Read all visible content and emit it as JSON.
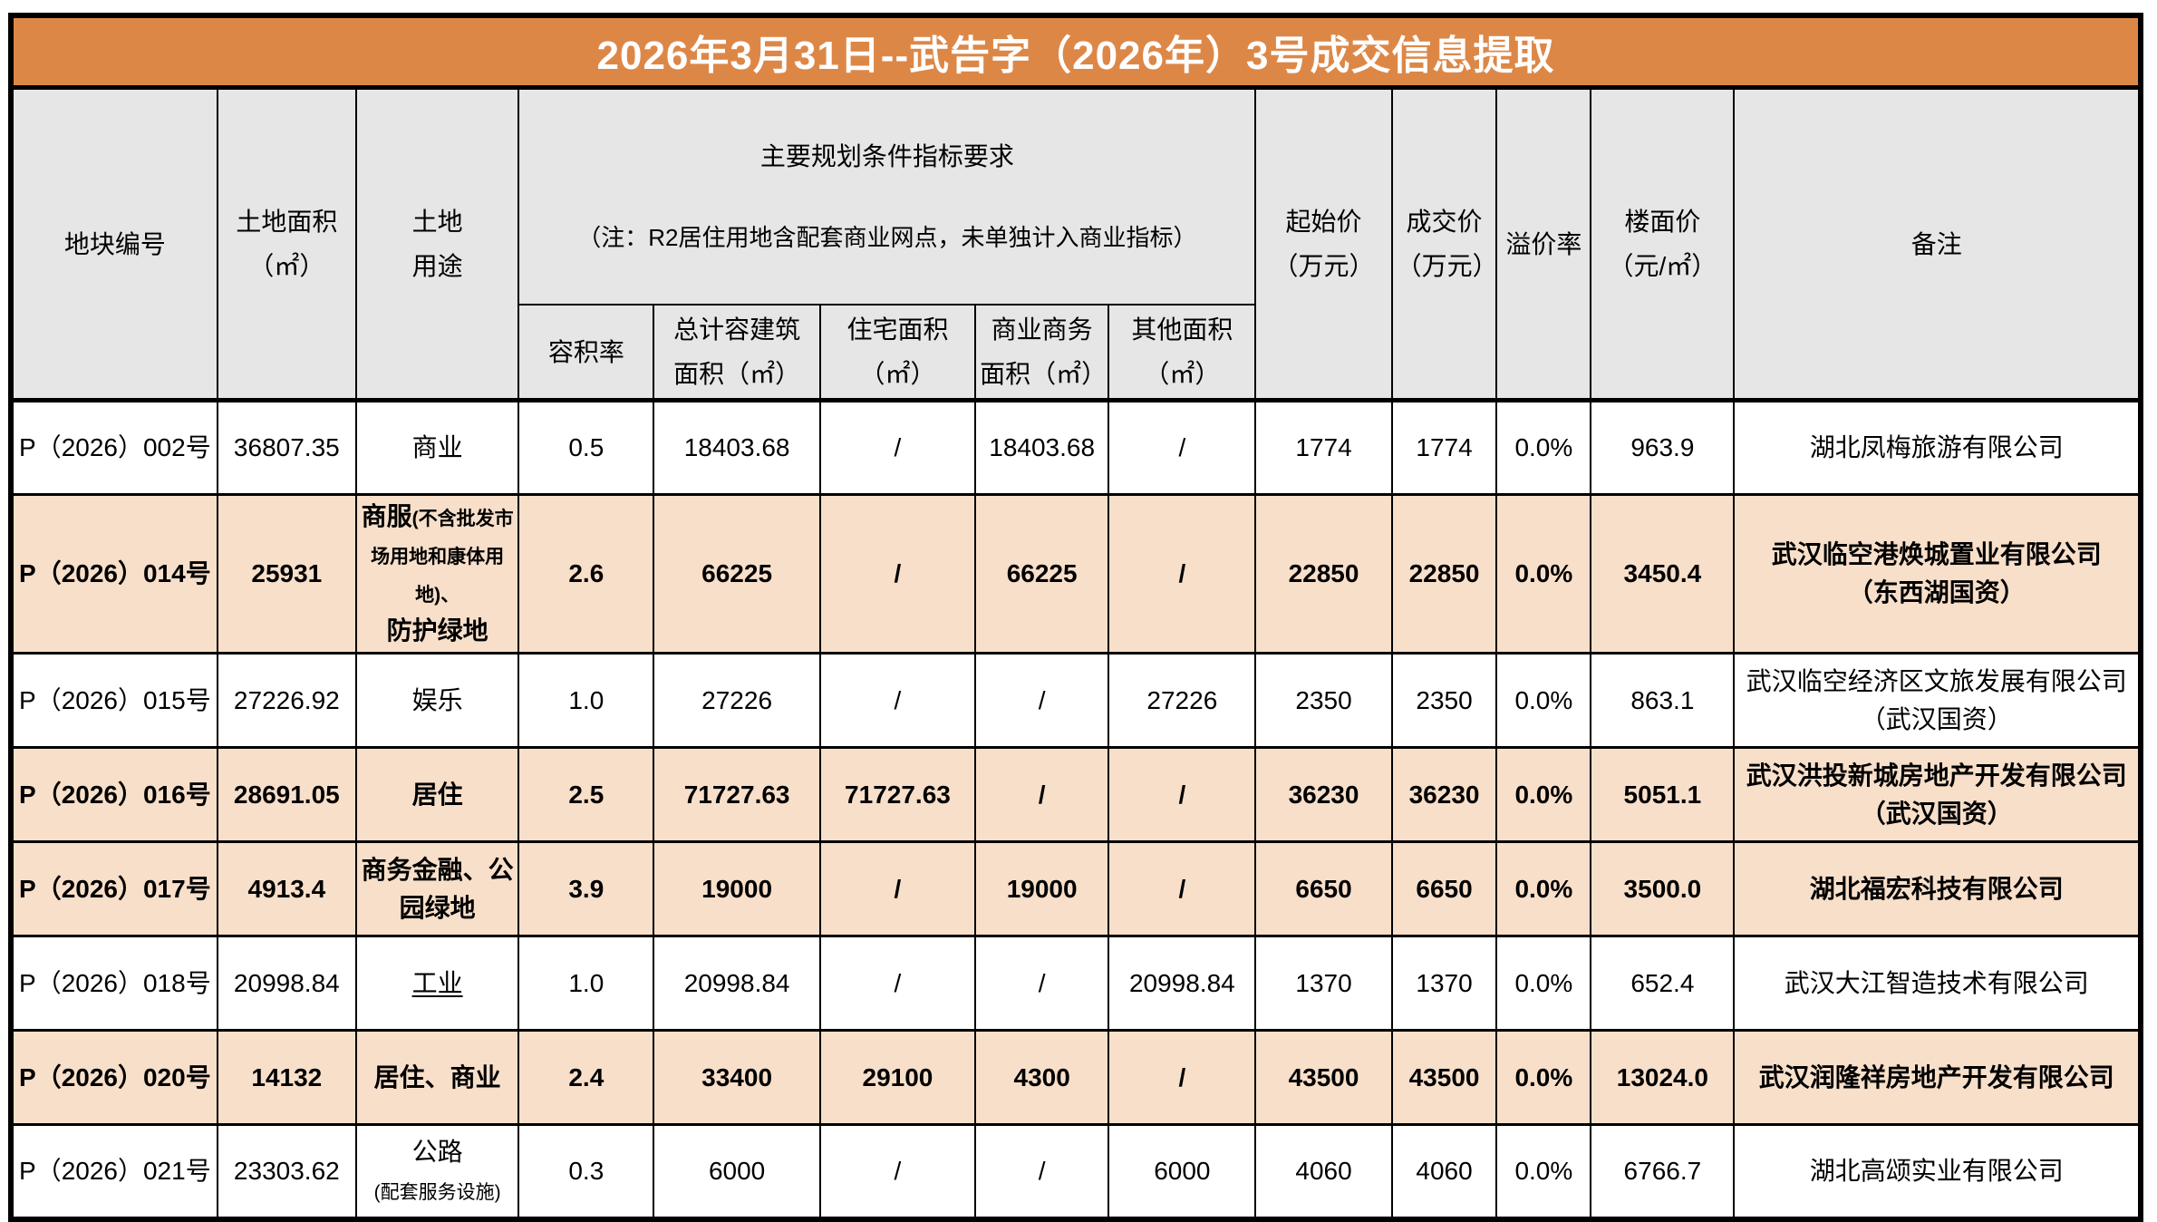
{
  "title": "2026年3月31日--武告字（2026年）3号成交信息提取",
  "colors": {
    "title_bg": "#DD8747",
    "title_text": "#FFFFFF",
    "header_bg": "#E6E6E6",
    "highlight_row_bg": "#F8DFCA",
    "border": "#000000"
  },
  "header": {
    "plot_no": "地块编号",
    "land_area": "土地面积\n（㎡）",
    "land_use": "土地\n用途",
    "planning_group_title": "主要规划条件指标要求",
    "planning_group_note": "（注：R2居住用地含配套商业网点，未单独计入商业指标）",
    "far": "容积率",
    "total_gfa": "总计容建筑\n面积（㎡）",
    "residential_area": "住宅面积\n（㎡）",
    "commercial_area": "商业商务\n面积（㎡）",
    "other_area": "其他面积\n（㎡）",
    "start_price": "起始价\n（万元）",
    "deal_price": "成交价\n（万元）",
    "premium_rate": "溢价率",
    "floor_price": "楼面价\n（元/㎡）",
    "remark": "备注"
  },
  "rows": [
    {
      "plot_no": "P（2026）002号",
      "land_area": "36807.35",
      "land_use": [
        {
          "text": "商业"
        }
      ],
      "far": "0.5",
      "total_gfa": "18403.68",
      "residential_area": "/",
      "commercial_area": "18403.68",
      "other_area": "/",
      "start_price": "1774",
      "deal_price": "1774",
      "premium_rate": "0.0%",
      "floor_price": "963.9",
      "remark": [
        "湖北凤梅旅游有限公司"
      ],
      "highlighted": false
    },
    {
      "plot_no": "P（2026）014号",
      "land_area": "25931",
      "land_use": [
        {
          "text": "商服"
        },
        {
          "text": "(不含批发市场用地和康体用地)、",
          "small": true
        },
        {
          "text": "防护绿地",
          "newline": true
        }
      ],
      "far": "2.6",
      "total_gfa": "66225",
      "residential_area": "/",
      "commercial_area": "66225",
      "other_area": "/",
      "start_price": "22850",
      "deal_price": "22850",
      "premium_rate": "0.0%",
      "floor_price": "3450.4",
      "remark": [
        "武汉临空港焕城置业有限公司",
        "（东西湖国资）"
      ],
      "highlighted": true
    },
    {
      "plot_no": "P（2026）015号",
      "land_area": "27226.92",
      "land_use": [
        {
          "text": "娱乐"
        }
      ],
      "far": "1.0",
      "total_gfa": "27226",
      "residential_area": "/",
      "commercial_area": "/",
      "other_area": "27226",
      "start_price": "2350",
      "deal_price": "2350",
      "premium_rate": "0.0%",
      "floor_price": "863.1",
      "remark": [
        "武汉临空经济区文旅发展有限公司",
        "（武汉国资）"
      ],
      "highlighted": false
    },
    {
      "plot_no": "P（2026）016号",
      "land_area": "28691.05",
      "land_use": [
        {
          "text": "居住"
        }
      ],
      "far": "2.5",
      "total_gfa": "71727.63",
      "residential_area": "71727.63",
      "commercial_area": "/",
      "other_area": "/",
      "start_price": "36230",
      "deal_price": "36230",
      "premium_rate": "0.0%",
      "floor_price": "5051.1",
      "remark": [
        "武汉洪投新城房地产开发有限公司",
        "（武汉国资）"
      ],
      "highlighted": true
    },
    {
      "plot_no": "P（2026）017号",
      "land_area": "4913.4",
      "land_use": [
        {
          "text": "商务金融、公园绿地"
        }
      ],
      "far": "3.9",
      "total_gfa": "19000",
      "residential_area": "/",
      "commercial_area": "19000",
      "other_area": "/",
      "start_price": "6650",
      "deal_price": "6650",
      "premium_rate": "0.0%",
      "floor_price": "3500.0",
      "remark": [
        "湖北福宏科技有限公司"
      ],
      "highlighted": true
    },
    {
      "plot_no": "P（2026）018号",
      "land_area": "20998.84",
      "land_use": [
        {
          "text": "工业",
          "underline": true
        }
      ],
      "far": "1.0",
      "total_gfa": "20998.84",
      "residential_area": "/",
      "commercial_area": "/",
      "other_area": "20998.84",
      "start_price": "1370",
      "deal_price": "1370",
      "premium_rate": "0.0%",
      "floor_price": "652.4",
      "remark": [
        "武汉大江智造技术有限公司"
      ],
      "highlighted": false
    },
    {
      "plot_no": "P（2026）020号",
      "land_area": "14132",
      "land_use": [
        {
          "text": "居住、商业"
        }
      ],
      "far": "2.4",
      "total_gfa": "33400",
      "residential_area": "29100",
      "commercial_area": "4300",
      "other_area": "/",
      "start_price": "43500",
      "deal_price": "43500",
      "premium_rate": "0.0%",
      "floor_price": "13024.0",
      "remark": [
        "武汉润隆祥房地产开发有限公司"
      ],
      "highlighted": true
    },
    {
      "plot_no": "P（2026）021号",
      "land_area": "23303.62",
      "land_use": [
        {
          "text": "公路"
        },
        {
          "text": "(配套服务设施)",
          "small": true,
          "newline": true
        }
      ],
      "far": "0.3",
      "total_gfa": "6000",
      "residential_area": "/",
      "commercial_area": "/",
      "other_area": "6000",
      "start_price": "4060",
      "deal_price": "4060",
      "premium_rate": "0.0%",
      "floor_price": "6766.7",
      "remark": [
        "湖北高颂实业有限公司"
      ],
      "highlighted": false
    }
  ]
}
